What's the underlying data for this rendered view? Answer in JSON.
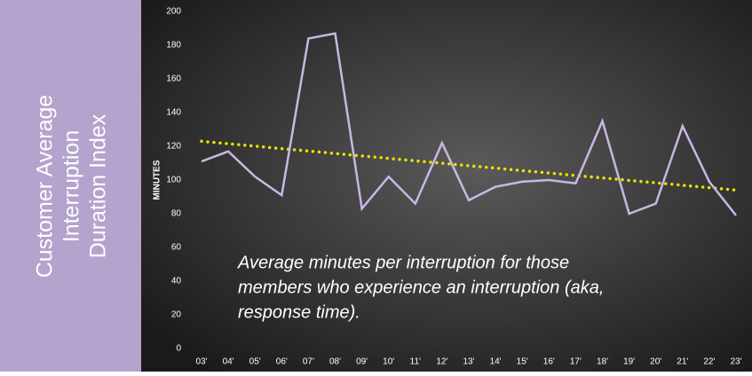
{
  "panel": {
    "title_lines": [
      "Customer Average",
      "Interruption",
      "Duration Index"
    ]
  },
  "chart_data": {
    "type": "line",
    "ylabel": "MINUTES",
    "categories": [
      "03'",
      "04'",
      "05'",
      "06'",
      "07'",
      "08'",
      "09'",
      "10'",
      "11'",
      "12'",
      "13'",
      "14'",
      "15'",
      "16'",
      "17'",
      "18'",
      "19'",
      "20'",
      "21'",
      "22'",
      "23'"
    ],
    "series": [
      {
        "color": "#c9b6e4",
        "values": [
          111,
          117,
          102,
          91,
          184,
          187,
          83,
          102,
          86,
          122,
          88,
          96,
          99,
          100,
          98,
          135,
          80,
          86,
          132,
          99,
          79
        ]
      }
    ],
    "trendline": {
      "color": "#e8e400",
      "values": [
        123,
        94
      ]
    },
    "ylim": [
      0,
      200
    ],
    "yticks": [
      0,
      20,
      40,
      60,
      80,
      100,
      120,
      140,
      160,
      180,
      200
    ],
    "grid": false,
    "annotation_lines": [
      "Average minutes per interruption for those",
      "members who experience an interruption (aka,",
      "response time)."
    ]
  }
}
